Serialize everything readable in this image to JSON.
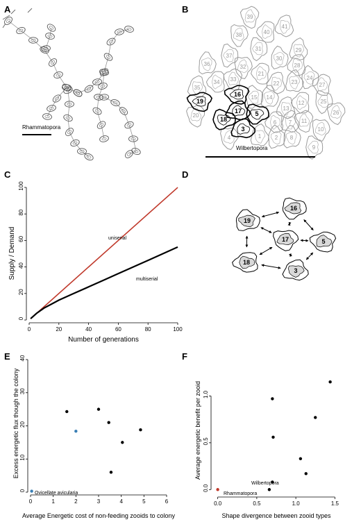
{
  "panels": {
    "A": {
      "label": "A",
      "caption": "Rhammatopora",
      "caption_color": "#c0392b"
    },
    "B": {
      "label": "B",
      "caption": "Wilbertopora",
      "highlight_color": "#c0392b",
      "gray_zooids": [
        "1",
        "2",
        "3",
        "4",
        "5",
        "6",
        "7",
        "8",
        "9",
        "10",
        "11",
        "12",
        "13",
        "14",
        "15",
        "17",
        "20",
        "21",
        "22",
        "23",
        "24",
        "25",
        "26",
        "27",
        "28",
        "29",
        "30",
        "31",
        "32",
        "33",
        "34",
        "35",
        "36",
        "37",
        "38",
        "39",
        "40",
        "41"
      ],
      "bold_zooids": [
        "3",
        "5",
        "16",
        "18",
        "19"
      ],
      "red_zooids": [
        "17",
        "35"
      ]
    },
    "C": {
      "label": "C",
      "series_labels": {
        "uniserial": "uniserial",
        "multiserial": "multiserial"
      }
    },
    "D": {
      "label": "D",
      "zooids": [
        "19",
        "16",
        "17",
        "5",
        "18",
        "3"
      ]
    },
    "E": {
      "label": "E",
      "legend_label": "Ovicellate avicularia",
      "legend_color": "#3a7fb5"
    },
    "F": {
      "label": "F",
      "labels": {
        "wilbertopora": "Wilbertopora",
        "rhammatopora": "Rhammatopora"
      },
      "rhammatopora_color": "#c0392b"
    }
  },
  "chart_data": [
    {
      "panel": "C",
      "type": "line",
      "xlabel": "Number of generations",
      "ylabel": "Supply / Demand",
      "xlim": [
        0,
        100
      ],
      "ylim": [
        0,
        100
      ],
      "xticks": [
        0,
        20,
        40,
        60,
        80,
        100
      ],
      "yticks": [
        0,
        20,
        40,
        60,
        80,
        100
      ],
      "series": [
        {
          "name": "uniserial",
          "color": "#c0392b",
          "x": [
            1,
            100
          ],
          "y": [
            1,
            100
          ]
        },
        {
          "name": "multiserial",
          "color": "#000000",
          "x": [
            1,
            5,
            10,
            15,
            20,
            30,
            40,
            50,
            60,
            70,
            80,
            90,
            100
          ],
          "y": [
            1,
            5,
            9,
            12,
            15,
            20,
            25,
            30,
            35,
            40,
            45,
            50,
            55
          ]
        }
      ]
    },
    {
      "panel": "E",
      "type": "scatter",
      "xlabel": "Average Energetic cost of non-feeding zooids to colony",
      "ylabel": "Excess energetic flux though the colony",
      "xlim": [
        0,
        6
      ],
      "ylim": [
        0,
        40
      ],
      "xticks": [
        0,
        1,
        2,
        3,
        4,
        5,
        6
      ],
      "yticks": [
        0,
        10,
        20,
        30,
        40
      ],
      "points": [
        {
          "x": 1.6,
          "y": 24.3,
          "color": "#000000"
        },
        {
          "x": 2.0,
          "y": 18.4,
          "color": "#3a7fb5"
        },
        {
          "x": 3.0,
          "y": 25.0,
          "color": "#000000"
        },
        {
          "x": 3.45,
          "y": 21.0,
          "color": "#000000"
        },
        {
          "x": 4.05,
          "y": 15.0,
          "color": "#000000"
        },
        {
          "x": 4.85,
          "y": 18.8,
          "color": "#000000"
        },
        {
          "x": 3.55,
          "y": 6.0,
          "color": "#000000"
        },
        {
          "x": 0.05,
          "y": 0.3,
          "color": "#3a7fb5"
        }
      ]
    },
    {
      "panel": "F",
      "type": "scatter",
      "xlabel": "Shape divergence between zooid types",
      "ylabel": "Average energetic benefit per zooid",
      "xlim": [
        -0.05,
        1.55
      ],
      "ylim": [
        -0.05,
        1.3
      ],
      "xticks": [
        0.0,
        0.5,
        1.0,
        1.5
      ],
      "yticks": [
        0.0,
        0.5,
        1.0
      ],
      "points": [
        {
          "x": 0.0,
          "y": 0.0,
          "color": "#c0392b"
        },
        {
          "x": 0.66,
          "y": 0.0,
          "color": "#000000"
        },
        {
          "x": 0.7,
          "y": 0.08,
          "color": "#000000"
        },
        {
          "x": 0.71,
          "y": 0.56,
          "color": "#000000"
        },
        {
          "x": 0.7,
          "y": 0.97,
          "color": "#000000"
        },
        {
          "x": 1.06,
          "y": 0.33,
          "color": "#000000"
        },
        {
          "x": 1.13,
          "y": 0.17,
          "color": "#000000"
        },
        {
          "x": 1.25,
          "y": 0.77,
          "color": "#000000"
        },
        {
          "x": 1.44,
          "y": 1.15,
          "color": "#000000"
        }
      ]
    }
  ]
}
